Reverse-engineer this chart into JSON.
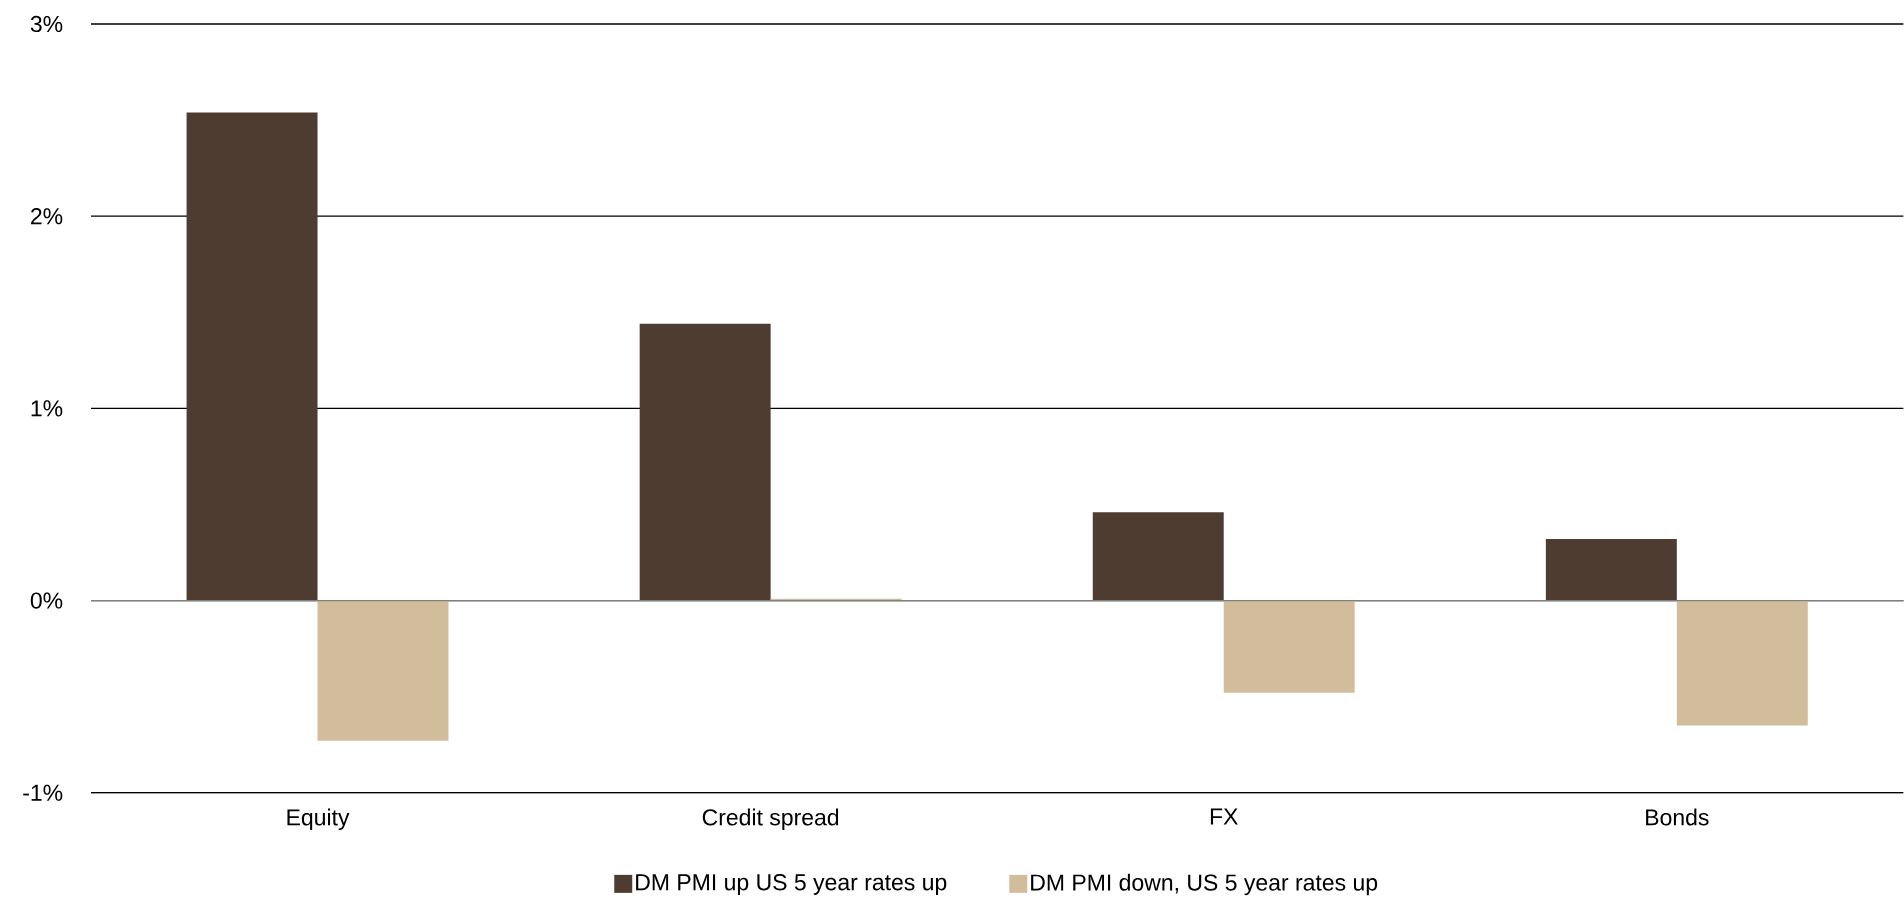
{
  "chart_data": {
    "type": "bar",
    "categories": [
      "Equity",
      "Credit spread",
      "FX",
      "Bonds"
    ],
    "series": [
      {
        "name": "DM PMI up US 5 year rates up",
        "color": "#4e3c30",
        "values": [
          2.54,
          1.44,
          0.46,
          0.32
        ]
      },
      {
        "name": "DM PMI down, US 5 year rates up",
        "color": "#d1bd9b",
        "values": [
          -0.73,
          0.01,
          -0.48,
          -0.65
        ]
      }
    ],
    "ylim": [
      -1,
      3
    ],
    "yticks": [
      {
        "value": -1,
        "label": "-1%"
      },
      {
        "value": 0,
        "label": "0%"
      },
      {
        "value": 1,
        "label": "1%"
      },
      {
        "value": 2,
        "label": "2%"
      },
      {
        "value": 3,
        "label": "3%"
      }
    ],
    "grid": "y",
    "legend": "bottom"
  }
}
